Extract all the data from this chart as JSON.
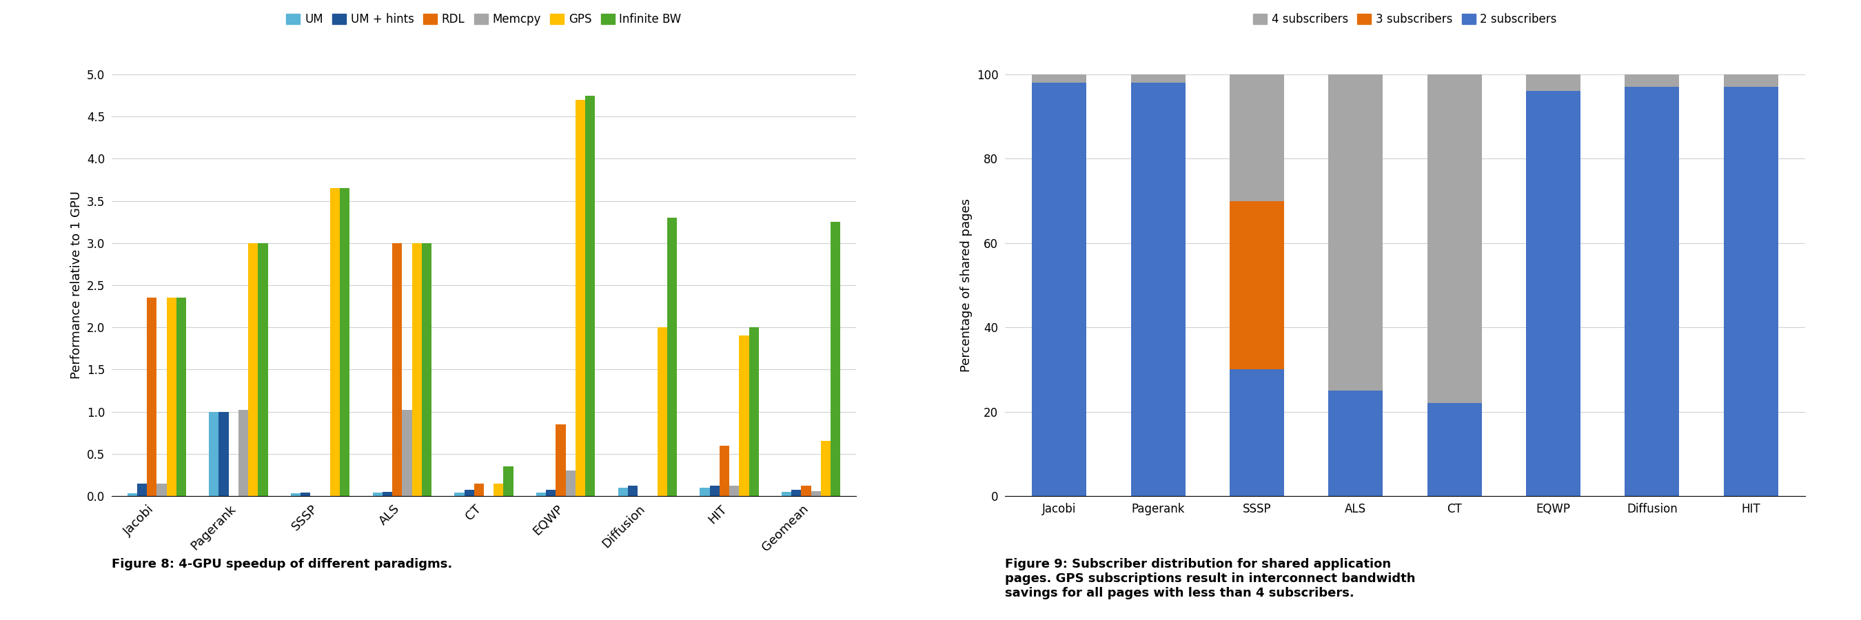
{
  "fig8": {
    "categories": [
      "Jacobi",
      "Pagerank",
      "SSSP",
      "ALS",
      "CT",
      "EQWP",
      "Diffusion",
      "HIT",
      "Geomean"
    ],
    "series": {
      "UM": [
        0.03,
        1.0,
        0.03,
        0.04,
        0.04,
        0.04,
        0.1,
        0.1,
        0.05
      ],
      "UM+hints": [
        0.15,
        1.0,
        0.04,
        0.05,
        0.07,
        0.07,
        0.12,
        0.12,
        0.07
      ],
      "RDL": [
        2.35,
        0.0,
        0.0,
        3.0,
        0.15,
        0.85,
        0.0,
        0.6,
        0.12
      ],
      "Memcpy": [
        0.15,
        1.02,
        0.0,
        1.02,
        0.0,
        0.3,
        0.0,
        0.12,
        0.06
      ],
      "GPS": [
        2.35,
        3.0,
        3.65,
        3.0,
        0.15,
        4.7,
        2.0,
        1.9,
        0.65
      ],
      "InfiniteBW": [
        2.35,
        3.0,
        3.65,
        3.0,
        0.35,
        4.75,
        3.3,
        2.0,
        3.25
      ]
    },
    "colors": {
      "UM": "#5ab4d6",
      "UM+hints": "#1f5496",
      "RDL": "#e36c09",
      "Memcpy": "#a6a6a6",
      "GPS": "#ffc000",
      "InfiniteBW": "#4ea72a"
    },
    "legend_labels": [
      "UM",
      "UM + hints",
      "RDL",
      "Memcpy",
      "GPS",
      "Infinite BW"
    ],
    "ylabel": "Performance relative to 1 GPU",
    "ylim": [
      0,
      5
    ],
    "yticks": [
      0,
      0.5,
      1,
      1.5,
      2,
      2.5,
      3,
      3.5,
      4,
      4.5,
      5
    ],
    "caption": "Figure 8: 4-GPU speedup of different paradigms."
  },
  "fig9": {
    "categories": [
      "Jacobi",
      "Pagerank",
      "SSSP",
      "ALS",
      "CT",
      "EQWP",
      "Diffusion",
      "HIT"
    ],
    "series": {
      "4sub": [
        2,
        2,
        30,
        75,
        78,
        4,
        3,
        3
      ],
      "3sub": [
        0,
        0,
        40,
        0,
        0,
        0,
        0,
        0
      ],
      "2sub": [
        98,
        98,
        30,
        25,
        22,
        96,
        97,
        97
      ]
    },
    "colors": {
      "4sub": "#a6a6a6",
      "3sub": "#e36c09",
      "2sub": "#4472c4"
    },
    "legend_labels": [
      "4 subscribers",
      "3 subscribers",
      "2 subscribers"
    ],
    "ylabel": "Percentage of shared pages",
    "ylim": [
      0,
      100
    ],
    "yticks": [
      0,
      20,
      40,
      60,
      80,
      100
    ],
    "caption": "Figure 9: Subscriber distribution for shared application\npages. GPS subscriptions result in interconnect bandwidth\nsavings for all pages with less than 4 subscribers."
  },
  "grid_color": "#d0d0d0"
}
